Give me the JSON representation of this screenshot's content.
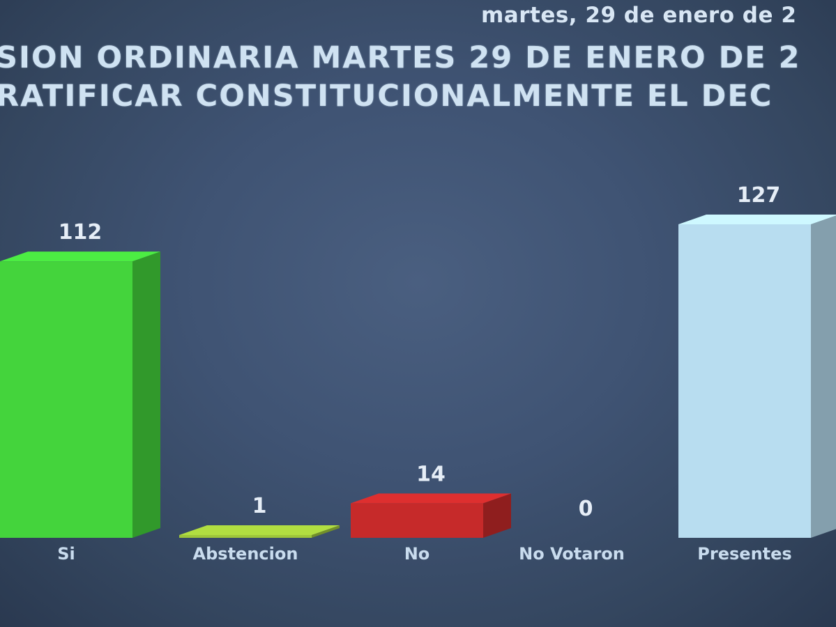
{
  "header": {
    "date": "martes, 29 de enero de 2",
    "title_line_1": "SION ORDINARIA MARTES 29 DE ENERO DE 2",
    "title_line_2": "RATIFICAR CONSTITUCIONALMENTE EL DEC"
  },
  "chart_data": {
    "type": "bar",
    "categories": [
      "Si",
      "Abstencion",
      "No",
      "No Votaron",
      "Presentes"
    ],
    "values": [
      112,
      1,
      14,
      0,
      127
    ],
    "colors": {
      "Si": "#44d43c",
      "Abstencion": "#9ec63a",
      "No": "#c62a2a",
      "No Votaron": "#8a8a8a",
      "Presentes": "#b8ddf0"
    },
    "title": "",
    "xlabel": "",
    "ylabel": "",
    "ylim": [
      0,
      127
    ],
    "grid": false,
    "legend": "none"
  }
}
